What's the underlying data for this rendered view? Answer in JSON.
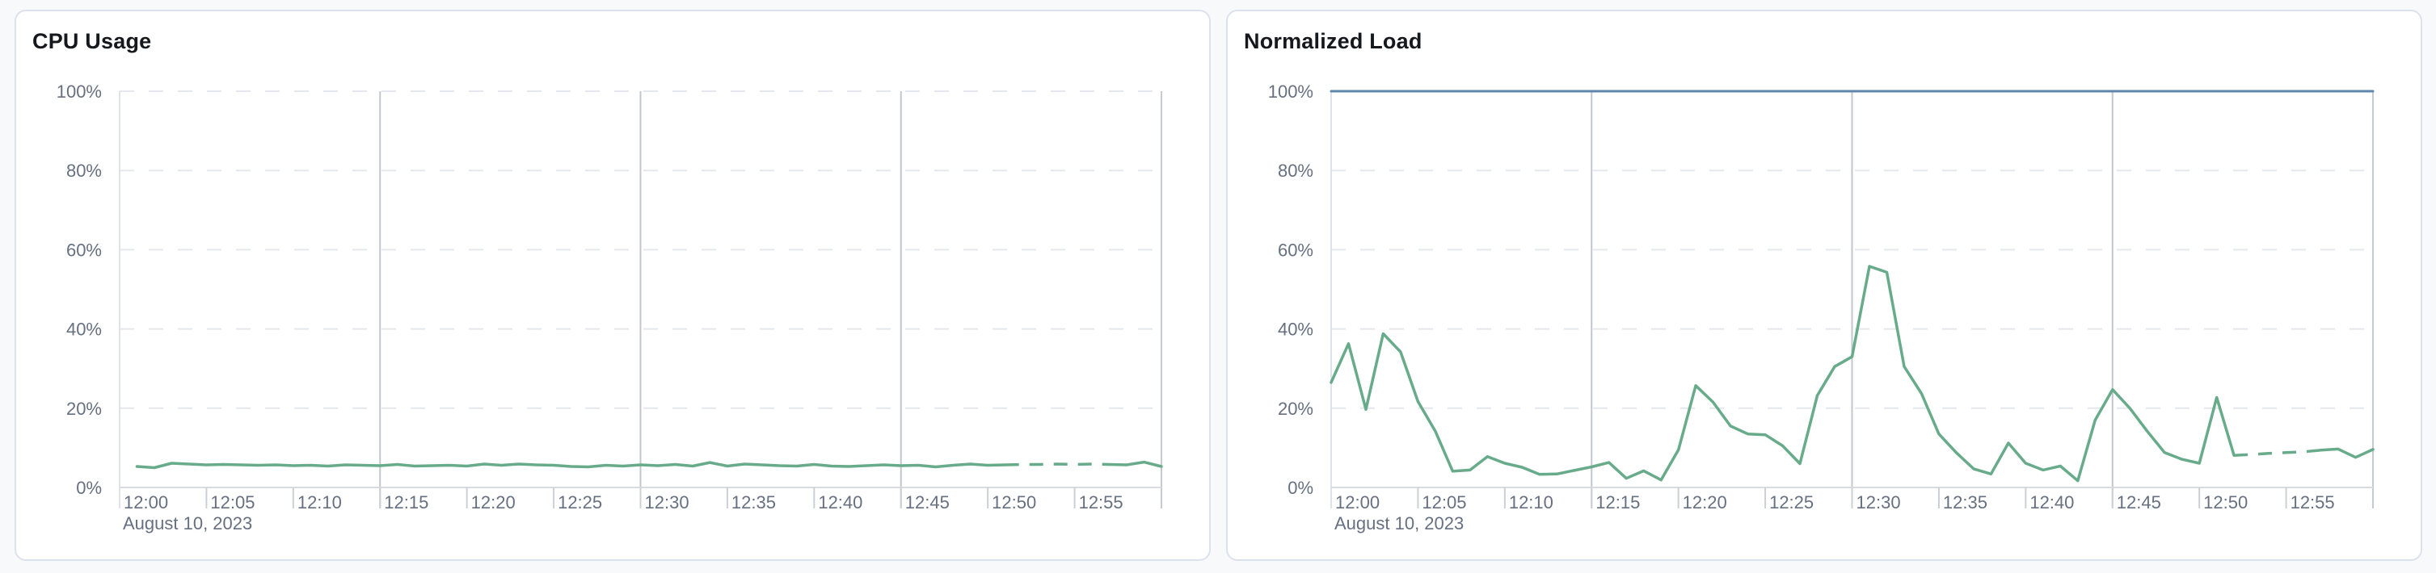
{
  "page": {
    "background_color": "#f8f9fb",
    "card_background": "#ffffff",
    "card_border_color": "#dce2ed"
  },
  "chart_data": [
    {
      "type": "line",
      "title": "CPU Usage",
      "xlabel": "",
      "ylabel": "",
      "legend": "none",
      "grid": {
        "horizontal": "dashed",
        "vertical_emphasized": "solid"
      },
      "x_axis": {
        "tick_labels": [
          "12:00",
          "12:05",
          "12:10",
          "12:15",
          "12:20",
          "12:25",
          "12:30",
          "12:35",
          "12:40",
          "12:45",
          "12:50",
          "12:55"
        ],
        "tick_interval_minutes": 5,
        "domain_minutes": [
          0,
          60
        ],
        "context_label": "August 10, 2023",
        "emphasized_gridline_minutes": [
          15,
          30,
          45
        ]
      },
      "y_axis": {
        "tick_labels": [
          "0%",
          "20%",
          "40%",
          "60%",
          "80%",
          "100%"
        ],
        "tick_values": [
          0,
          20,
          40,
          60,
          80,
          100
        ],
        "range": [
          0,
          100
        ]
      },
      "series": [
        {
          "name": "cpu-usage",
          "color": "#68ab8a",
          "line_width": 3.5,
          "unit": "%",
          "x_start_minute": 1,
          "x_step_minutes": 1,
          "values": [
            5.3,
            5.0,
            6.1,
            5.9,
            5.7,
            5.8,
            5.7,
            5.6,
            5.7,
            5.5,
            5.6,
            5.4,
            5.7,
            5.6,
            5.5,
            5.8,
            5.4,
            5.5,
            5.6,
            5.4,
            5.9,
            5.6,
            5.9,
            5.7,
            5.6,
            5.3,
            5.2,
            5.6,
            5.4,
            5.7,
            5.5,
            5.8,
            5.4,
            6.3,
            5.4,
            5.9,
            5.7,
            5.5,
            5.4,
            5.8,
            5.4,
            5.3,
            5.5,
            5.7,
            5.5,
            5.6,
            5.2,
            5.6,
            5.9,
            5.6,
            5.7,
            5.8,
            5.8,
            5.9,
            5.8,
            5.9,
            5.8,
            5.7,
            6.4,
            5.3
          ],
          "segments": [
            {
              "from": 0,
              "to": 50,
              "line_style": "solid"
            },
            {
              "from": 50,
              "to": 56,
              "line_style": "dashed"
            },
            {
              "from": 56,
              "to": 59,
              "line_style": "solid"
            }
          ]
        }
      ]
    },
    {
      "type": "line",
      "title": "Normalized Load",
      "xlabel": "",
      "ylabel": "",
      "legend": "none",
      "grid": {
        "horizontal": "dashed",
        "vertical_emphasized": "solid"
      },
      "x_axis": {
        "tick_labels": [
          "12:00",
          "12:05",
          "12:10",
          "12:15",
          "12:20",
          "12:25",
          "12:30",
          "12:35",
          "12:40",
          "12:45",
          "12:50",
          "12:55"
        ],
        "tick_interval_minutes": 5,
        "domain_minutes": [
          0,
          60
        ],
        "context_label": "August 10, 2023",
        "emphasized_gridline_minutes": [
          15,
          30,
          45
        ]
      },
      "y_axis": {
        "tick_labels": [
          "0%",
          "20%",
          "40%",
          "60%",
          "80%",
          "100%"
        ],
        "tick_values": [
          0,
          20,
          40,
          60,
          80,
          100
        ],
        "range": [
          0,
          100
        ]
      },
      "series": [
        {
          "name": "load-limit-100",
          "color": "#5f87ae",
          "line_width": 3,
          "unit": "%",
          "x_start_minute": 0,
          "x_step_minutes": 1,
          "constant_value": 100,
          "points_count": 61,
          "segments": [
            {
              "from": 0,
              "to": 60,
              "line_style": "solid"
            }
          ]
        },
        {
          "name": "normalized-load",
          "color": "#68ab8a",
          "line_width": 3.5,
          "unit": "%",
          "x_start_minute": 0,
          "x_step_minutes": 1,
          "values": [
            26.5,
            36.3,
            19.7,
            38.8,
            34.2,
            21.7,
            14.2,
            4.1,
            4.4,
            7.8,
            6.1,
            5.1,
            3.3,
            3.4,
            4.3,
            5.2,
            6.3,
            2.3,
            4.2,
            1.9,
            9.5,
            25.7,
            21.5,
            15.5,
            13.5,
            13.3,
            10.5,
            6.0,
            23.2,
            30.5,
            33.0,
            55.8,
            54.3,
            30.5,
            23.7,
            13.5,
            8.8,
            4.7,
            3.4,
            11.2,
            6.1,
            4.4,
            5.4,
            1.7,
            17.0,
            24.7,
            20.0,
            14.2,
            8.8,
            7.1,
            6.1,
            22.7,
            8.1,
            8.3,
            8.6,
            8.8,
            9.0,
            9.4,
            9.7,
            7.6,
            9.6
          ],
          "segments": [
            {
              "from": 0,
              "to": 52,
              "line_style": "solid"
            },
            {
              "from": 52,
              "to": 57,
              "line_style": "dashed"
            },
            {
              "from": 57,
              "to": 60,
              "line_style": "solid"
            }
          ]
        }
      ]
    }
  ]
}
